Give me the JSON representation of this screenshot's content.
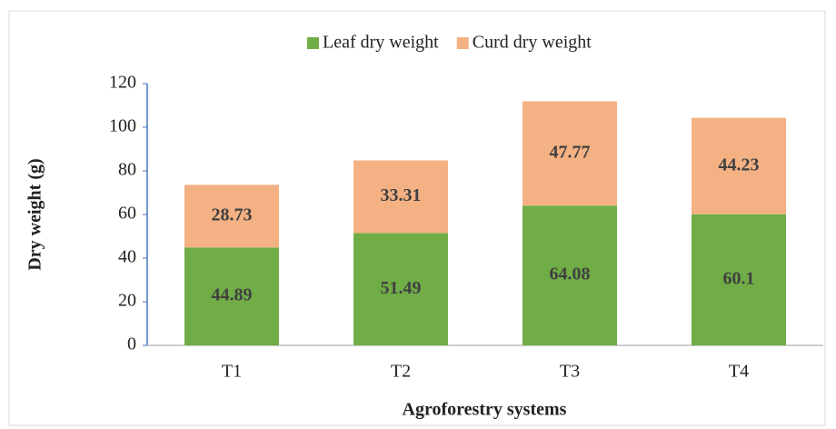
{
  "chart_data": {
    "type": "stacked_bar",
    "categories": [
      "T1",
      "T2",
      "T3",
      "T4"
    ],
    "series": [
      {
        "name": "Leaf dry weight",
        "color": "#70ad47",
        "values": [
          44.89,
          51.49,
          64.08,
          60.1
        ]
      },
      {
        "name": "Curd dry weight",
        "color": "#f4b183",
        "values": [
          28.73,
          33.31,
          47.77,
          44.23
        ]
      }
    ],
    "ylim": [
      0,
      120
    ],
    "yticks": [
      0,
      20,
      40,
      60,
      80,
      100,
      120
    ],
    "y_label": "Dry weight (g)",
    "x_label": "Agroforestry systems",
    "legend": "top"
  }
}
